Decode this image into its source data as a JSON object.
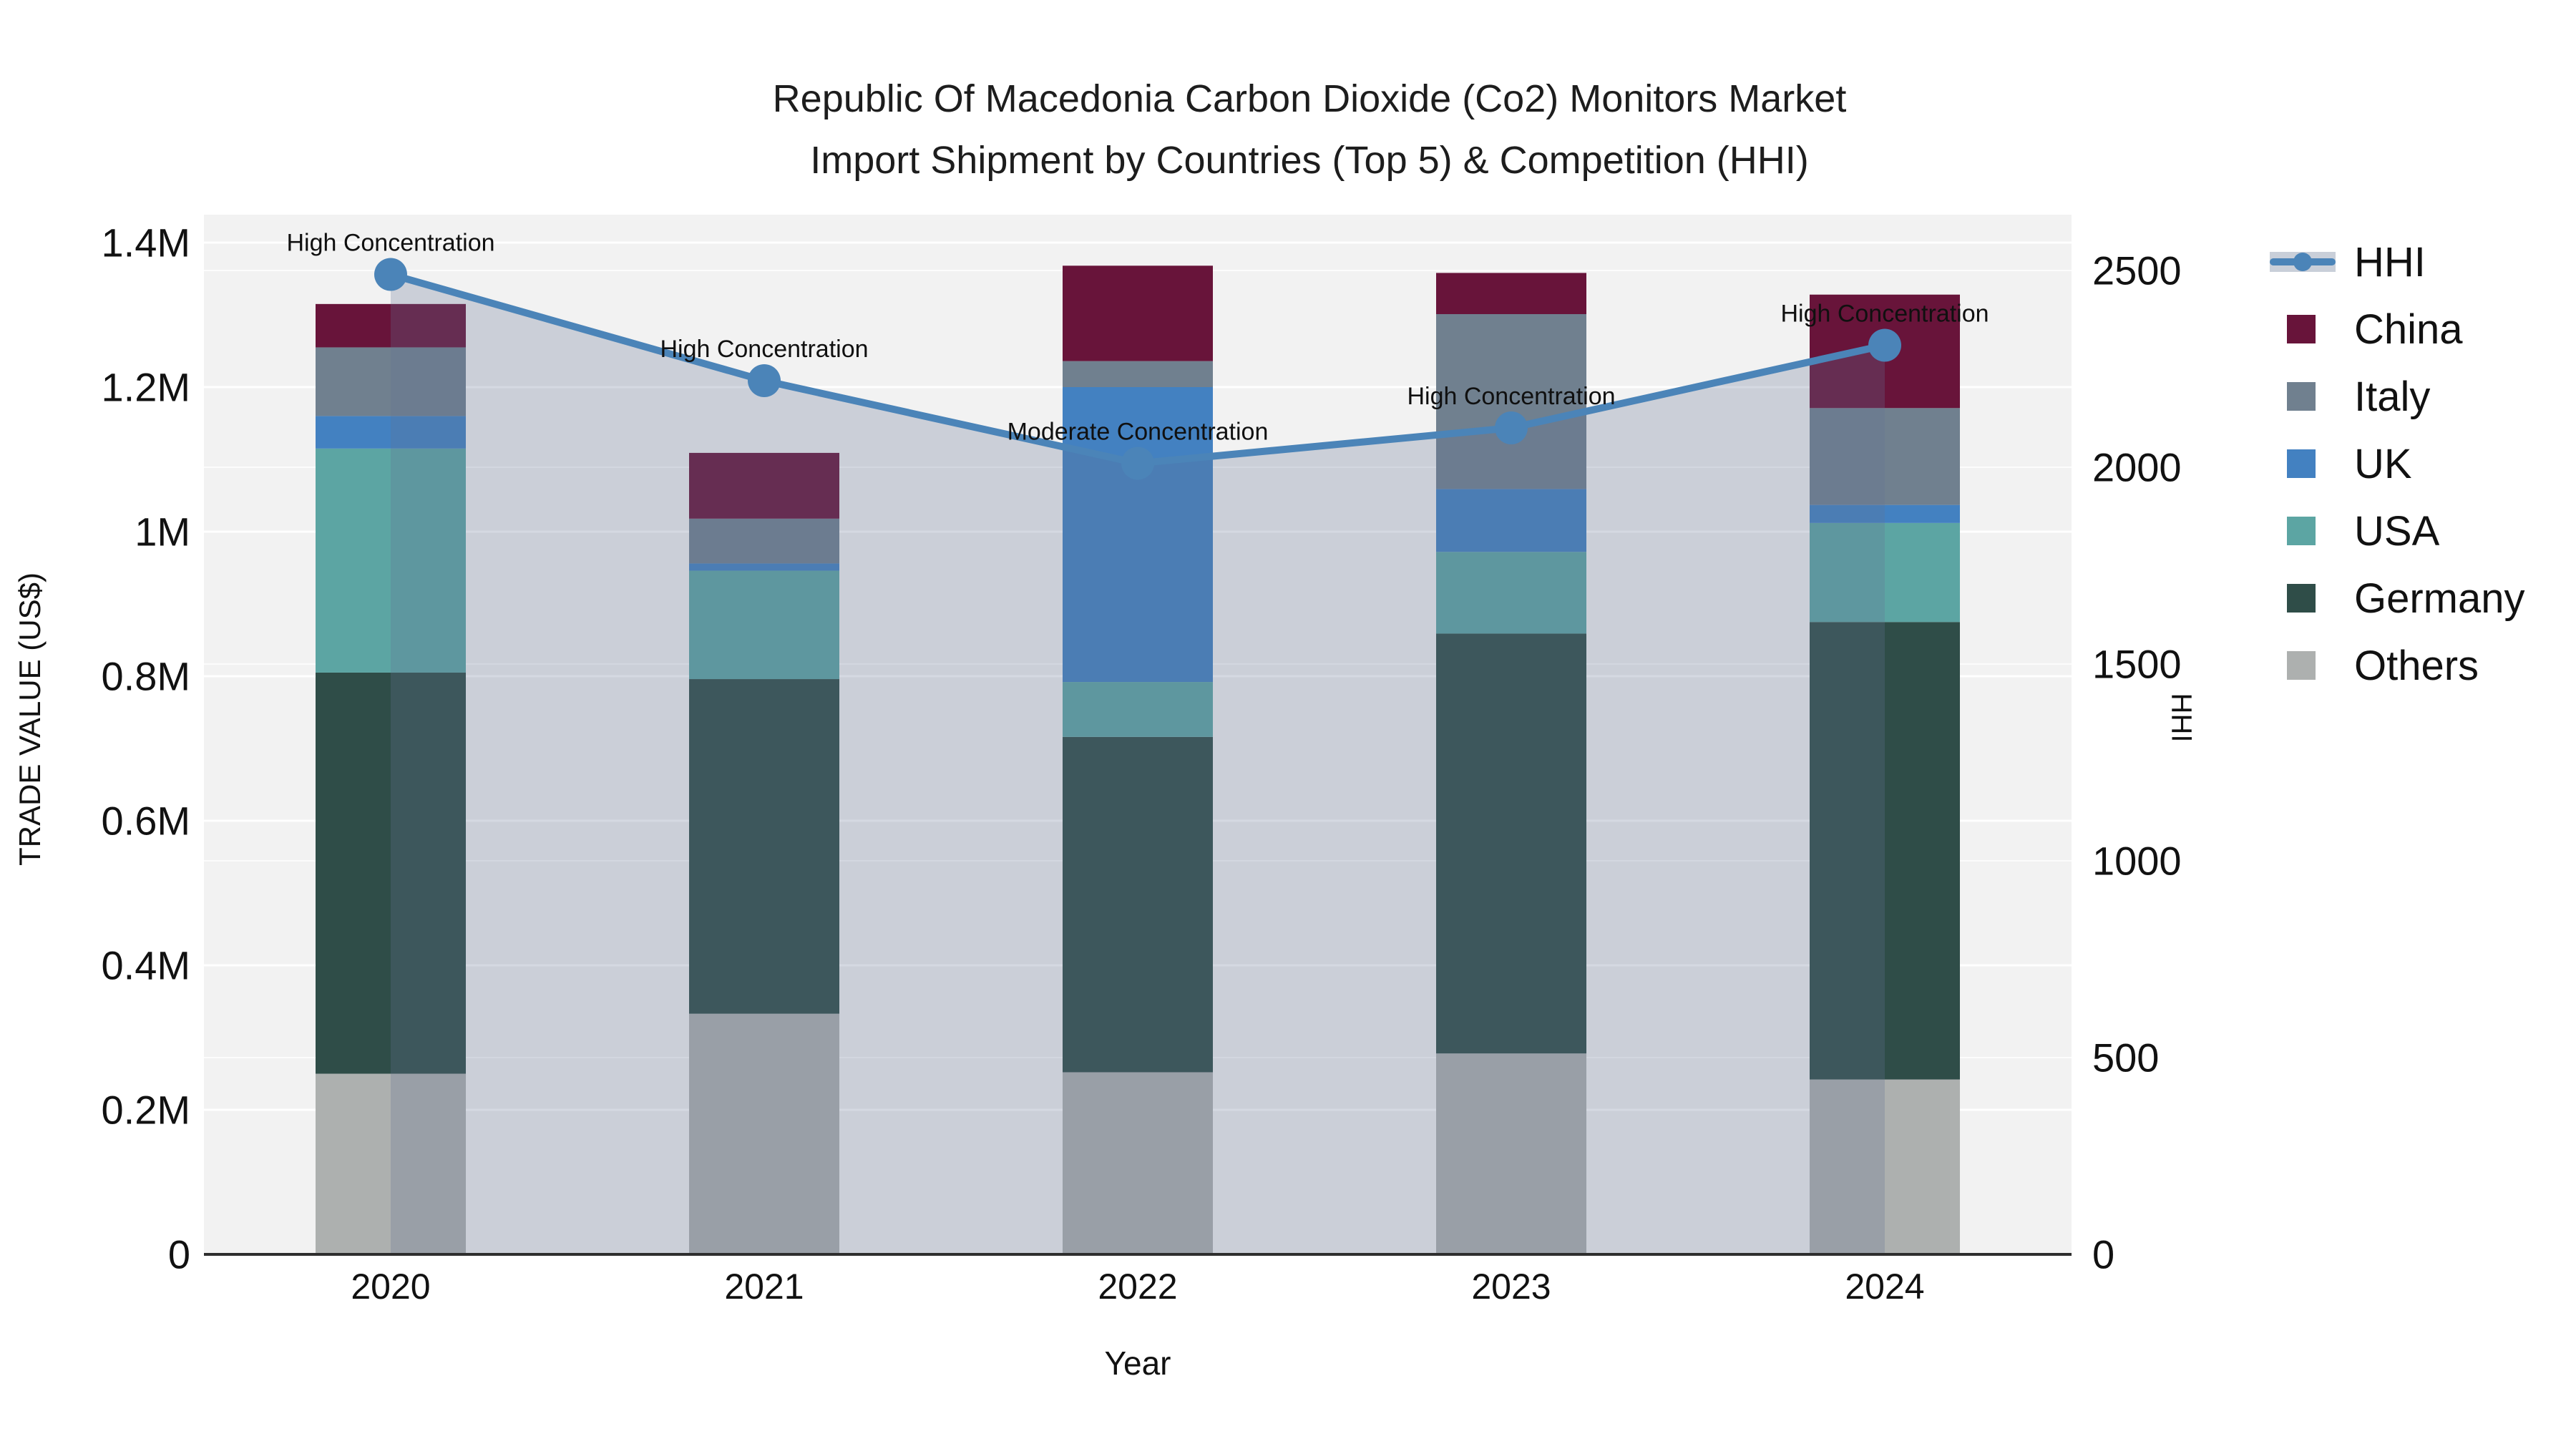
{
  "title": {
    "line1": "Republic Of Macedonia Carbon Dioxide (Co2) Monitors Market",
    "line2": "Import Shipment by Countries (Top 5) & Competition (HHI)"
  },
  "axes": {
    "x": {
      "title": "Year",
      "tick_labels": [
        "2020",
        "2021",
        "2022",
        "2023",
        "2024"
      ]
    },
    "y_left": {
      "title": "TRADE VALUE (US$)",
      "tick_labels": [
        "0",
        "0.2M",
        "0.4M",
        "0.6M",
        "0.8M",
        "1M",
        "1.2M",
        "1.4M"
      ],
      "tick_values": [
        0,
        200000,
        400000,
        600000,
        800000,
        1000000,
        1200000,
        1400000
      ],
      "range": [
        0,
        1400000
      ]
    },
    "y_right": {
      "title": "HHI",
      "tick_labels": [
        "0",
        "500",
        "1000",
        "1500",
        "2000",
        "2500"
      ],
      "tick_values": [
        0,
        500,
        1000,
        1500,
        2000,
        2500
      ],
      "range": [
        0,
        2500
      ]
    }
  },
  "legend": [
    {
      "label": "HHI",
      "type": "line",
      "color": "#4b84b8"
    },
    {
      "label": "China",
      "type": "square",
      "color": "#68143a"
    },
    {
      "label": "Italy",
      "type": "square",
      "color": "#70808f"
    },
    {
      "label": "UK",
      "type": "square",
      "color": "#4381c1"
    },
    {
      "label": "USA",
      "type": "square",
      "color": "#5ca5a3"
    },
    {
      "label": "Germany",
      "type": "square",
      "color": "#2f4d48"
    },
    {
      "label": "Others",
      "type": "square",
      "color": "#adb0af"
    }
  ],
  "chart_data": {
    "type": "bar+line",
    "categories": [
      "2020",
      "2021",
      "2022",
      "2023",
      "2024"
    ],
    "bar_unit": "US$",
    "series": [
      {
        "name": "China",
        "color": "#68143a",
        "values": [
          60000,
          91000,
          132000,
          57000,
          157000
        ]
      },
      {
        "name": "Italy",
        "color": "#70808f",
        "values": [
          95000,
          62000,
          36000,
          242000,
          134000
        ]
      },
      {
        "name": "UK",
        "color": "#4381c1",
        "values": [
          45000,
          10000,
          408000,
          87000,
          25000
        ]
      },
      {
        "name": "USA",
        "color": "#5ca5a3",
        "values": [
          310000,
          150000,
          76000,
          113000,
          137000
        ]
      },
      {
        "name": "Germany",
        "color": "#2f4d48",
        "values": [
          555000,
          463000,
          464000,
          581000,
          633000
        ]
      },
      {
        "name": "Others",
        "color": "#adb0af",
        "values": [
          250000,
          333000,
          252000,
          278000,
          242000
        ]
      }
    ],
    "stack_order_bottom_to_top": [
      "Others",
      "Germany",
      "USA",
      "UK",
      "Italy",
      "China"
    ],
    "bar_totals": [
      1315000,
      1109000,
      1368000,
      1358000,
      1328000
    ],
    "line_series": {
      "name": "HHI",
      "axis": "right",
      "color": "#4b84b8",
      "fill": "tozeroy",
      "fill_color": "rgba(98,115,148,0.27)",
      "values": [
        2490,
        2220,
        2010,
        2100,
        2310
      ]
    },
    "annotations": [
      {
        "category": "2020",
        "text": "High Concentration"
      },
      {
        "category": "2021",
        "text": "High Concentration"
      },
      {
        "category": "2022",
        "text": "Moderate Concentration"
      },
      {
        "category": "2023",
        "text": "High Concentration"
      },
      {
        "category": "2024",
        "text": "High Concentration"
      }
    ],
    "ylim_left": [
      0,
      1400000
    ],
    "ylim_right": [
      0,
      2500
    ],
    "grid": true,
    "legend_position": "right",
    "plot_bg": "#f2f2f2",
    "grid_color": "#ffffff",
    "axis_line_color": "#2e2e2e"
  }
}
